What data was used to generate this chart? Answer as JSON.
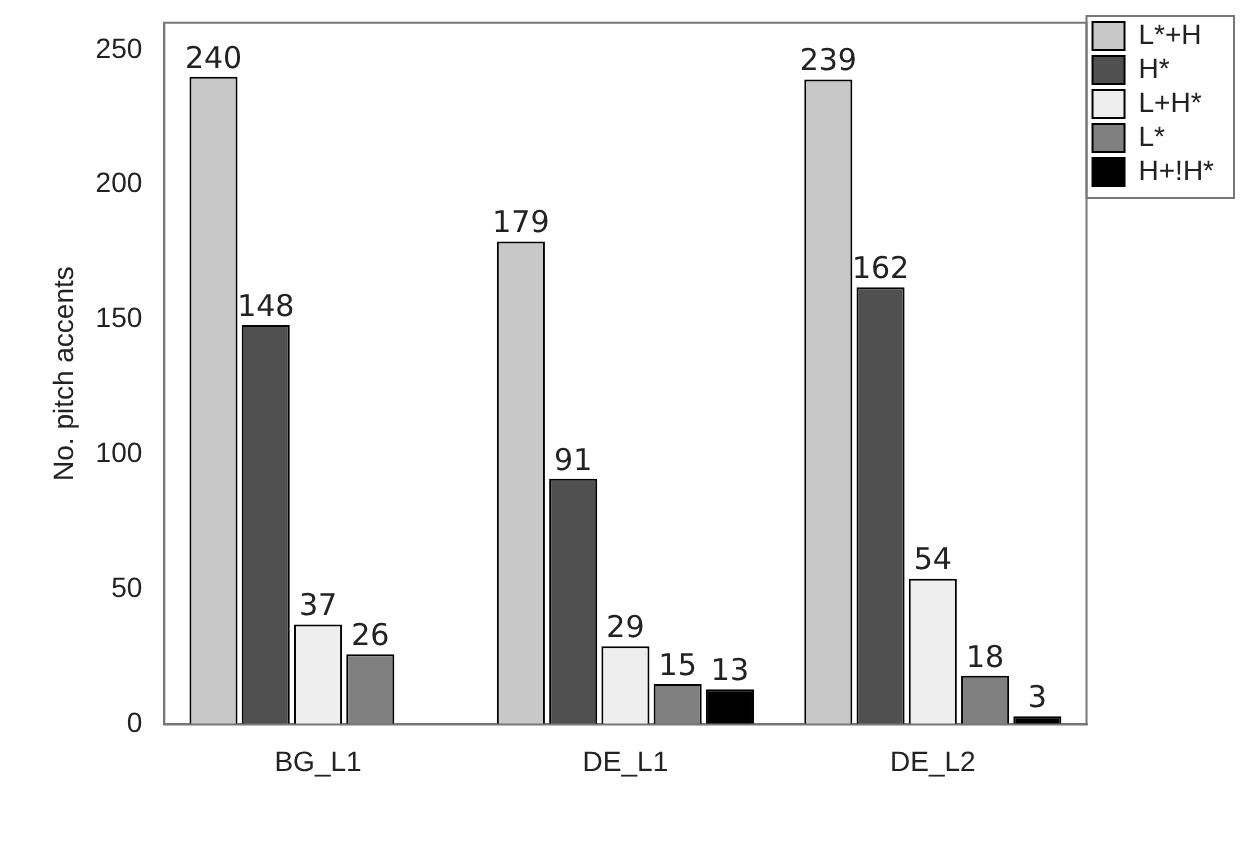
{
  "chart_data": {
    "type": "bar",
    "ylabel": "No. pitch accents",
    "categories": [
      "BG_L1",
      "DE_L1",
      "DE_L2"
    ],
    "series": [
      {
        "name": "L*+H",
        "color": "#c8c8c8",
        "values": [
          240,
          179,
          239
        ]
      },
      {
        "name": "H*",
        "color": "#505050",
        "values": [
          148,
          91,
          162
        ]
      },
      {
        "name": "L+H*",
        "color": "#eeeeee",
        "values": [
          37,
          29,
          54
        ]
      },
      {
        "name": "L*",
        "color": "#808080",
        "values": [
          26,
          15,
          18
        ]
      },
      {
        "name": "H+!H*",
        "color": "#000000",
        "values": [
          null,
          13,
          3
        ]
      }
    ],
    "ylim": [
      0,
      260
    ],
    "yticks": [
      0,
      50,
      100,
      150,
      200,
      250
    ],
    "grid": false,
    "legend": "top right",
    "data_labels": true
  }
}
